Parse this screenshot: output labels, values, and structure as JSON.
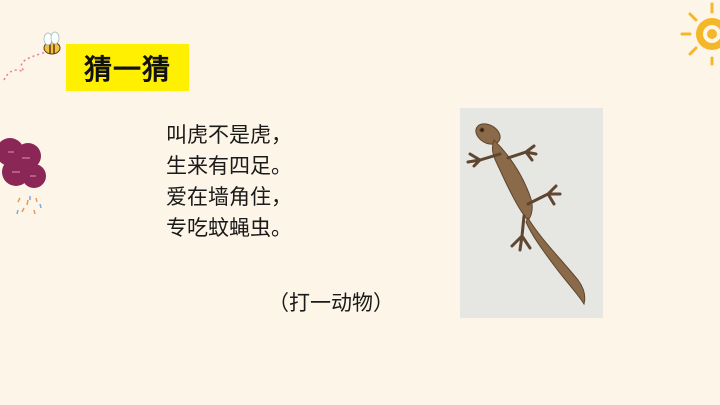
{
  "title": "猜一猜",
  "riddle": {
    "lines": [
      "叫虎不是虎，",
      "生来有四足。",
      "爱在墙角住，",
      "专吃蚊蝇虫。"
    ]
  },
  "hint": "（打一动物）",
  "photo": {
    "subject": "gecko"
  },
  "colors": {
    "background": "#fdf5e8",
    "title_highlight": "#ffef00",
    "flower": "#8b2757",
    "sun": "#f5b72a"
  },
  "icons": [
    "bee-icon",
    "flower-decoration-icon",
    "sun-decoration-icon"
  ]
}
